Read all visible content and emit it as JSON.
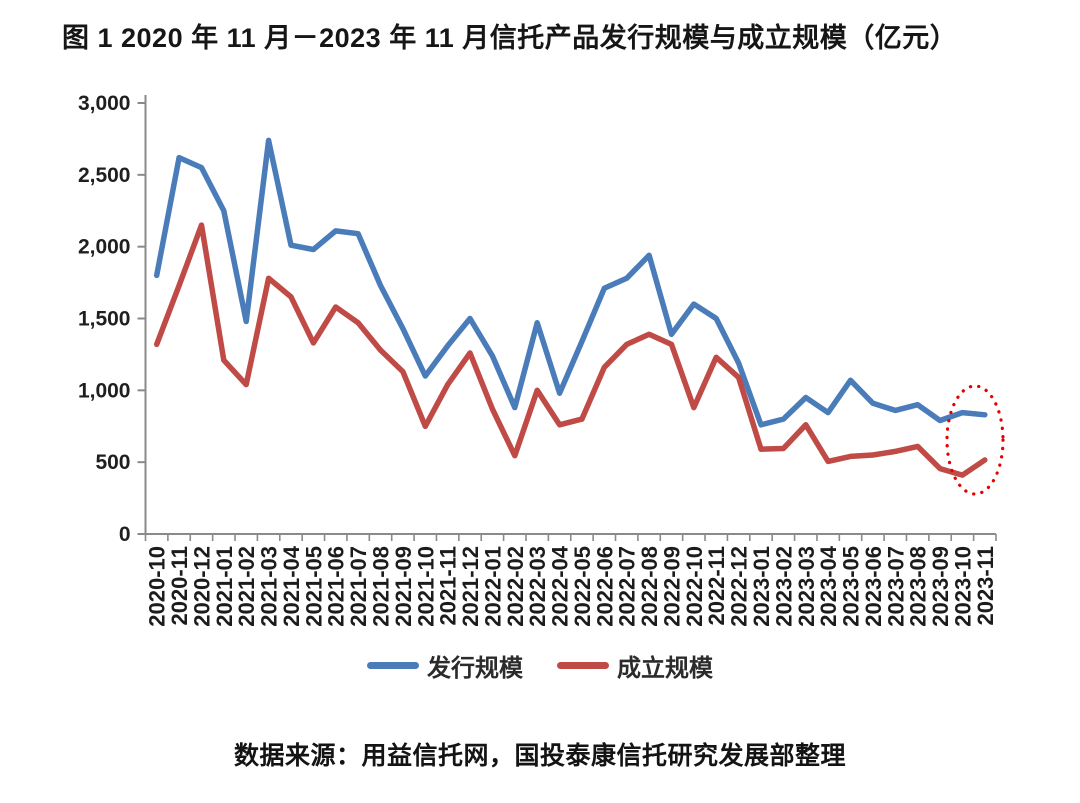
{
  "figure": {
    "title": "图 1 2020 年 11 月－2023 年 11 月信托产品发行规模与成立规模（亿元）",
    "source_note": "数据来源：用益信托网，国投泰康信托研究发展部整理"
  },
  "chart_data": {
    "type": "line",
    "title": "信托产品发行规模与成立规模（亿元）",
    "xlabel": "",
    "ylabel": "",
    "ylim": [
      0,
      3000
    ],
    "yticks": [
      0,
      500,
      1000,
      1500,
      2000,
      2500,
      3000
    ],
    "ytick_labels": [
      "0",
      "500",
      "1,000",
      "1,500",
      "2,000",
      "2,500",
      "3,000"
    ],
    "grid": false,
    "legend_position": "bottom",
    "categories": [
      "2020-10",
      "2020-11",
      "2020-12",
      "2021-01",
      "2021-02",
      "2021-03",
      "2021-04",
      "2021-05",
      "2021-06",
      "2021-07",
      "2021-08",
      "2021-09",
      "2021-10",
      "2021-11",
      "2021-12",
      "2022-01",
      "2022-02",
      "2022-03",
      "2022-04",
      "2022-05",
      "2022-06",
      "2022-07",
      "2022-08",
      "2022-09",
      "2022-10",
      "2022-11",
      "2022-12",
      "2023-01",
      "2023-02",
      "2023-03",
      "2023-04",
      "2023-05",
      "2023-06",
      "2023-07",
      "2023-08",
      "2023-09",
      "2023-10",
      "2023-11"
    ],
    "series": [
      {
        "name": "发行规模",
        "color": "#4a7cba",
        "values": [
          1800,
          2620,
          2550,
          2250,
          1480,
          2740,
          2010,
          1980,
          2110,
          2090,
          1730,
          1430,
          1100,
          1310,
          1500,
          1240,
          880,
          1470,
          980,
          1340,
          1710,
          1780,
          1940,
          1390,
          1600,
          1500,
          1190,
          760,
          800,
          950,
          845,
          1070,
          910,
          860,
          900,
          790,
          845,
          830
        ]
      },
      {
        "name": "成立规模",
        "color": "#bf4a46",
        "values": [
          1320,
          1730,
          2150,
          1210,
          1040,
          1780,
          1650,
          1330,
          1580,
          1470,
          1280,
          1130,
          750,
          1040,
          1260,
          870,
          545,
          1000,
          760,
          800,
          1160,
          1320,
          1390,
          1320,
          880,
          1230,
          1090,
          590,
          595,
          760,
          505,
          540,
          550,
          575,
          610,
          455,
          410,
          515
        ]
      }
    ],
    "annotation": {
      "shape": "ellipse",
      "style": "dotted",
      "color": "#e60000",
      "purpose": "highlight-latest-2023-10-to-11-points",
      "center_x": 975,
      "center_y": 440,
      "radius_x": 28,
      "radius_y": 54
    }
  },
  "legend": {
    "items": [
      {
        "label": "发行规模",
        "color": "#4a7cba"
      },
      {
        "label": "成立规模",
        "color": "#bf4a46"
      }
    ]
  }
}
